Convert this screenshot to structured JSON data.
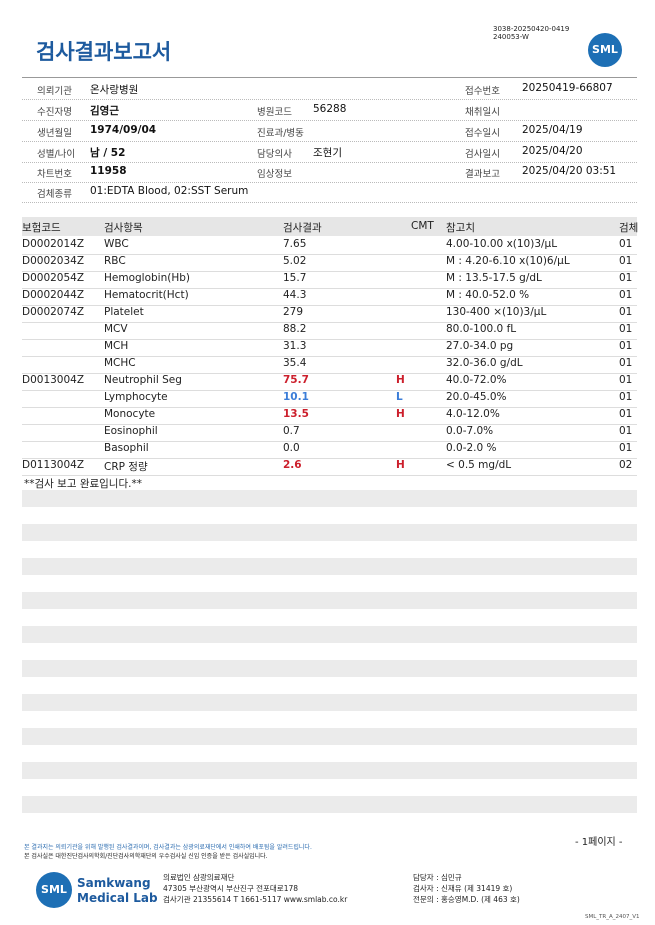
{
  "header": {
    "doc_id": [
      "3038-20250420-0419",
      "240053-W"
    ],
    "title": "검사결과보고서",
    "logo": "SML"
  },
  "info": {
    "rows": [
      [
        {
          "label": "의뢰기관",
          "value": "온사랑병원"
        },
        {},
        {
          "label": "접수번호",
          "value": "20250419-66807"
        }
      ],
      [
        {
          "label": "수진자명",
          "value": "김영근"
        },
        {
          "label": "병원코드",
          "value": "56288"
        },
        {
          "label": "채취일시"
        }
      ],
      [
        {
          "label": "생년월일",
          "value": "1974/09/04"
        },
        {
          "label": "진료과/병동"
        },
        {
          "label": "접수일시",
          "value": "2025/04/19"
        }
      ],
      [
        {
          "label": "성별/나이",
          "value": "남 / 52"
        },
        {
          "label": "담당의사",
          "value": "조현기"
        },
        {
          "label": "검사일시",
          "value": "2025/04/20"
        }
      ],
      [
        {
          "label": "차트번호",
          "value": "11958"
        },
        {
          "label": "임상정보"
        },
        {
          "label": "결과보고",
          "value": "2025/04/20 03:51"
        }
      ],
      [
        {
          "label": "검체종류",
          "value": "01:EDTA Blood, 02:SST Serum"
        }
      ]
    ]
  },
  "table": {
    "columns": [
      "보험코드",
      "검사항목",
      "검사결과",
      "CMT",
      "참고치",
      "검체"
    ],
    "rows": [
      {
        "code": "D0002014Z",
        "item": "WBC",
        "result": "7.65",
        "ref": "4.00-10.00 x(10)3/μL",
        "spec": "01"
      },
      {
        "code": "D0002034Z",
        "item": "RBC",
        "result": "5.02",
        "ref": "M : 4.20-6.10 x(10)6/μL",
        "spec": "01"
      },
      {
        "code": "D0002054Z",
        "item": "Hemoglobin(Hb)",
        "result": "15.7",
        "ref": "M : 13.5-17.5 g/dL",
        "spec": "01"
      },
      {
        "code": "D0002044Z",
        "item": "Hematocrit(Hct)",
        "result": "44.3",
        "ref": "M : 40.0-52.0 %",
        "spec": "01"
      },
      {
        "code": "D0002074Z",
        "item": "Platelet",
        "result": "279",
        "ref": "130-400 ×(10)3/μL",
        "spec": "01"
      },
      {
        "item": "MCV",
        "result": "88.2",
        "ref": "80.0-100.0 fL",
        "spec": "01"
      },
      {
        "item": "MCH",
        "result": "31.3",
        "ref": "27.0-34.0 pg",
        "spec": "01"
      },
      {
        "item": "MCHC",
        "result": "35.4",
        "ref": "32.0-36.0 g/dL",
        "spec": "01"
      },
      {
        "code": "D0013004Z",
        "item": "Neutrophil Seg",
        "result": "75.7",
        "flag": "H",
        "ref": "40.0-72.0%",
        "spec": "01"
      },
      {
        "item": "Lymphocyte",
        "result": "10.1",
        "flag": "L",
        "ref": "20.0-45.0%",
        "spec": "01"
      },
      {
        "item": "Monocyte",
        "result": "13.5",
        "flag": "H",
        "ref": "4.0-12.0%",
        "spec": "01"
      },
      {
        "item": "Eosinophil",
        "result": "0.7",
        "ref": "0.0-7.0%",
        "spec": "01"
      },
      {
        "item": "Basophil",
        "result": "0.0",
        "ref": "0.0-2.0 %",
        "spec": "01"
      },
      {
        "code": "D0113004Z",
        "item": "CRP 정량",
        "result": "2.6",
        "flag": "H",
        "ref": "< 0.5 mg/dL",
        "spec": "02"
      }
    ],
    "end_note": "**검사 보고 완료입니다.**"
  },
  "footer": {
    "page": "- 1페이지 -",
    "notes": [
      "본 결과지는 의뢰기관을 위해 발행된 검사결과이며, 검사결과는 삼광의료재단에서 인쇄하여 배포됨을 알려드립니다.",
      "본 검사실은 대한진단검사의학회/진단검사의학재단의 우수검사실 신임 인증을 받은 검사실입니다."
    ],
    "logo": {
      "mark": "SML",
      "name": [
        "Samkwang",
        "Medical Lab"
      ]
    },
    "address": [
      "의료법인 삼광의료재단",
      "47305 부산광역시 부산진구 전포대로178",
      "검사기관 21355614 T 1661-5117 www.smlab.co.kr"
    ],
    "staff": [
      "담당자 : 심민규",
      "검사자 : 신재유 (제 31419 호)",
      "전문의 : 홍승영M.D. (제 463 호)"
    ],
    "form_id": "SML_TR_A_2407_V1"
  }
}
